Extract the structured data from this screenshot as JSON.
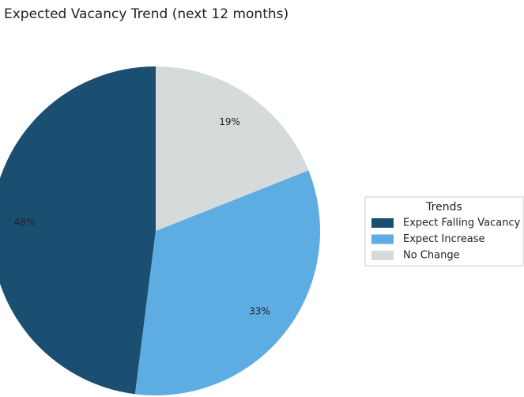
{
  "chart_data": {
    "type": "pie",
    "title": "Expected Vacancy Trend (next 12 months)",
    "categories": [
      "Expect Falling Vacancy",
      "Expect Increase",
      "No Change"
    ],
    "values": [
      48,
      33,
      19
    ],
    "value_labels": [
      "48%",
      "33%",
      "19%"
    ],
    "colors": [
      "#1b4f72",
      "#5dade2",
      "#d5dbdb"
    ],
    "legend_title": "Trends",
    "legend": "right"
  }
}
